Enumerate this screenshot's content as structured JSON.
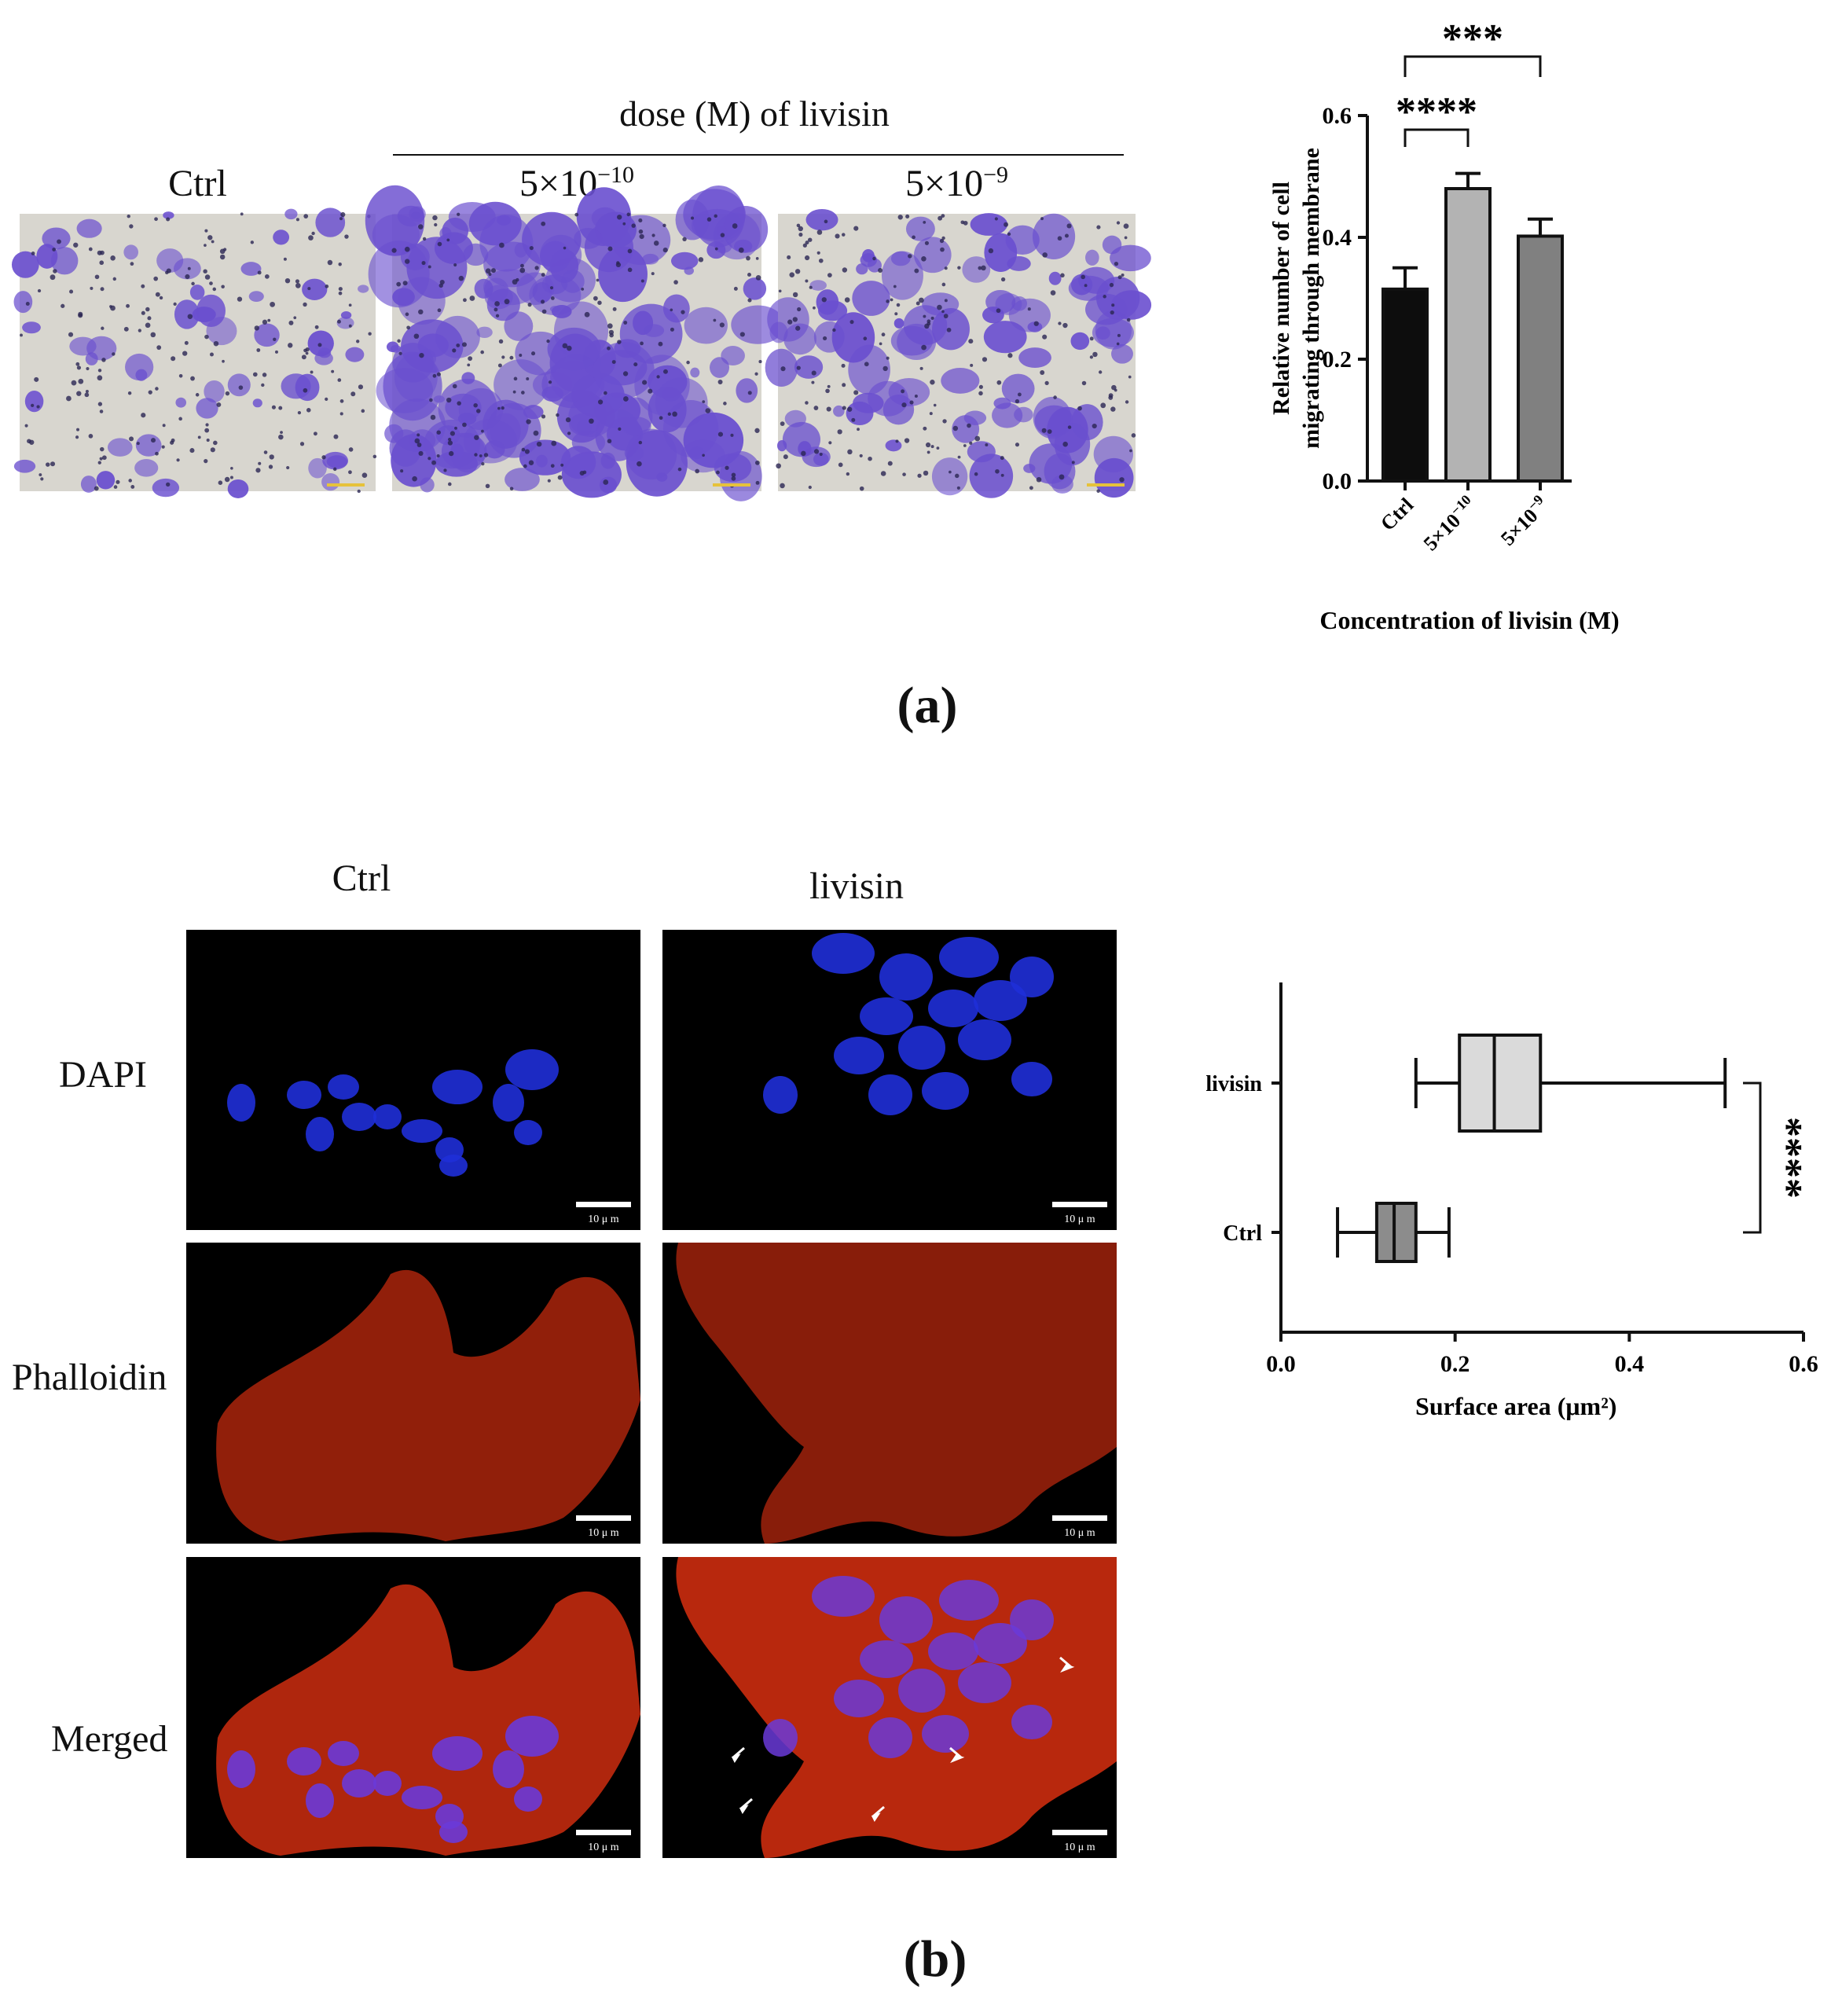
{
  "panel_a": {
    "letter": "(a)",
    "dose_header": "dose (M) of livisin",
    "image_labels": [
      "Ctrl",
      "5×10",
      "5×10"
    ],
    "image_label_exps": [
      "",
      "−10",
      "−9"
    ],
    "micrographs": [
      {
        "name": "Ctrl",
        "stain_density": "low"
      },
      {
        "name": "5×10^-10",
        "stain_density": "high"
      },
      {
        "name": "5×10^-9",
        "stain_density": "medium"
      }
    ]
  },
  "panel_b": {
    "letter": "(b)",
    "column_labels": [
      "Ctrl",
      "livisin"
    ],
    "row_labels": [
      "DAPI",
      "Phalloidin",
      "Merged"
    ],
    "scale_bar_label": "10 μ m",
    "colors": {
      "dapi": "#1f2fd8",
      "phalloidin": "#c8260e",
      "merged_nuclei": "#6a3ad8"
    }
  },
  "chart_data": [
    {
      "type": "bar",
      "title": "",
      "categories": [
        "Ctrl",
        "5×10",
        "5×10"
      ],
      "category_exps": [
        "",
        "−10",
        "−9"
      ],
      "values": [
        0.315,
        0.48,
        0.402
      ],
      "errors": [
        0.035,
        0.025,
        0.028
      ],
      "colors": [
        "#0d0d0d",
        "#b3b3b3",
        "#808080"
      ],
      "xlabel": "Concentration of livisin (M)",
      "ylabel_lines": [
        "Relative number of cell",
        "migrating through membrane"
      ],
      "ylim": [
        0,
        0.6
      ],
      "yticks": [
        "0.0",
        "0.2",
        "0.4",
        "0.6"
      ],
      "significance": [
        {
          "from": "Ctrl",
          "to": "5×10^-10",
          "label": "****"
        },
        {
          "from": "Ctrl",
          "to": "5×10^-9",
          "label": "***"
        }
      ],
      "grid": false
    },
    {
      "type": "boxplot",
      "title": "",
      "categories": [
        "livisin",
        "Ctrl"
      ],
      "boxes": [
        {
          "name": "livisin",
          "min": 0.155,
          "q1": 0.205,
          "median": 0.245,
          "q3": 0.298,
          "max": 0.51,
          "color": "#dadada"
        },
        {
          "name": "Ctrl",
          "min": 0.065,
          "q1": 0.11,
          "median": 0.13,
          "q3": 0.155,
          "max": 0.193,
          "color": "#8c8c8c"
        }
      ],
      "xlabel": "Surface area (μm²)",
      "xlim": [
        0,
        0.6
      ],
      "xticks": [
        "0.0",
        "0.2",
        "0.4",
        "0.6"
      ],
      "significance": [
        {
          "from": "livisin",
          "to": "Ctrl",
          "label": "****"
        }
      ],
      "grid": false
    }
  ]
}
